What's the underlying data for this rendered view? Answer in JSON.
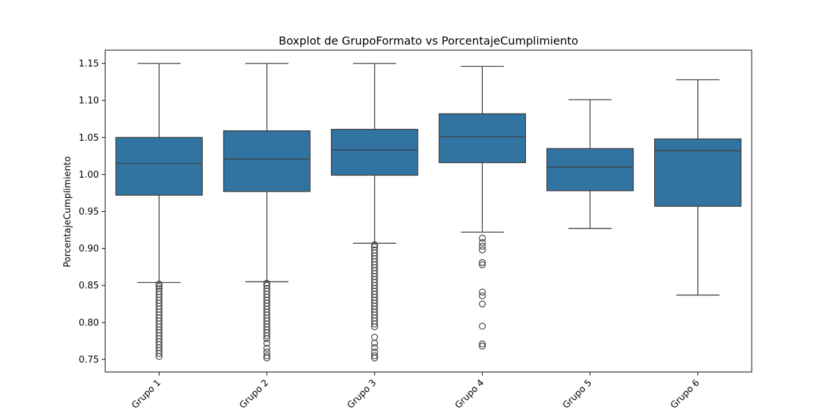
{
  "chart_data": {
    "type": "boxplot",
    "title": "Boxplot de GrupoFormato vs PorcentajeCumplimiento",
    "xlabel": "",
    "ylabel": "PorcentajeCumplimiento",
    "ylim": [
      0.733,
      1.168
    ],
    "y_ticks": [
      "0.75",
      "0.80",
      "0.85",
      "0.90",
      "0.95",
      "1.00",
      "1.05",
      "1.10",
      "1.15"
    ],
    "categories": [
      "Grupo 1",
      "Grupo 2",
      "Grupo 3",
      "Grupo 4",
      "Grupo 5",
      "Grupo 6"
    ],
    "box_color": "#3274a1",
    "line_color": "#3d3d3d",
    "grid": false,
    "boxes": [
      {
        "label": "Grupo 1",
        "whisker_low": 0.854,
        "q1": 0.972,
        "median": 1.015,
        "q3": 1.05,
        "whisker_high": 1.15,
        "outliers": [
          0.852,
          0.849,
          0.846,
          0.842,
          0.838,
          0.834,
          0.83,
          0.826,
          0.822,
          0.818,
          0.814,
          0.81,
          0.806,
          0.802,
          0.798,
          0.794,
          0.79,
          0.786,
          0.782,
          0.778,
          0.774,
          0.77,
          0.766,
          0.762,
          0.758,
          0.754
        ]
      },
      {
        "label": "Grupo 2",
        "whisker_low": 0.855,
        "q1": 0.977,
        "median": 1.021,
        "q3": 1.059,
        "whisker_high": 1.15,
        "outliers": [
          0.853,
          0.85,
          0.846,
          0.842,
          0.838,
          0.834,
          0.83,
          0.826,
          0.822,
          0.818,
          0.814,
          0.81,
          0.806,
          0.802,
          0.798,
          0.794,
          0.79,
          0.786,
          0.782,
          0.778,
          0.772,
          0.765,
          0.76,
          0.755,
          0.752
        ]
      },
      {
        "label": "Grupo 3",
        "whisker_low": 0.907,
        "q1": 0.999,
        "median": 1.033,
        "q3": 1.061,
        "whisker_high": 1.15,
        "outliers": [
          0.905,
          0.902,
          0.898,
          0.894,
          0.89,
          0.886,
          0.882,
          0.878,
          0.874,
          0.87,
          0.866,
          0.862,
          0.858,
          0.854,
          0.85,
          0.846,
          0.842,
          0.838,
          0.834,
          0.83,
          0.826,
          0.822,
          0.818,
          0.814,
          0.81,
          0.806,
          0.802,
          0.798,
          0.794,
          0.78,
          0.772,
          0.766,
          0.76,
          0.755,
          0.752
        ]
      },
      {
        "label": "Grupo 4",
        "whisker_low": 0.922,
        "q1": 1.016,
        "median": 1.051,
        "q3": 1.082,
        "whisker_high": 1.146,
        "outliers": [
          0.914,
          0.908,
          0.903,
          0.898,
          0.881,
          0.878,
          0.841,
          0.836,
          0.825,
          0.795,
          0.771,
          0.768
        ]
      },
      {
        "label": "Grupo 5",
        "whisker_low": 0.927,
        "q1": 0.978,
        "median": 1.01,
        "q3": 1.035,
        "whisker_high": 1.101,
        "outliers": []
      },
      {
        "label": "Grupo 6",
        "whisker_low": 0.837,
        "q1": 0.957,
        "median": 1.032,
        "q3": 1.048,
        "whisker_high": 1.128,
        "outliers": []
      }
    ]
  }
}
